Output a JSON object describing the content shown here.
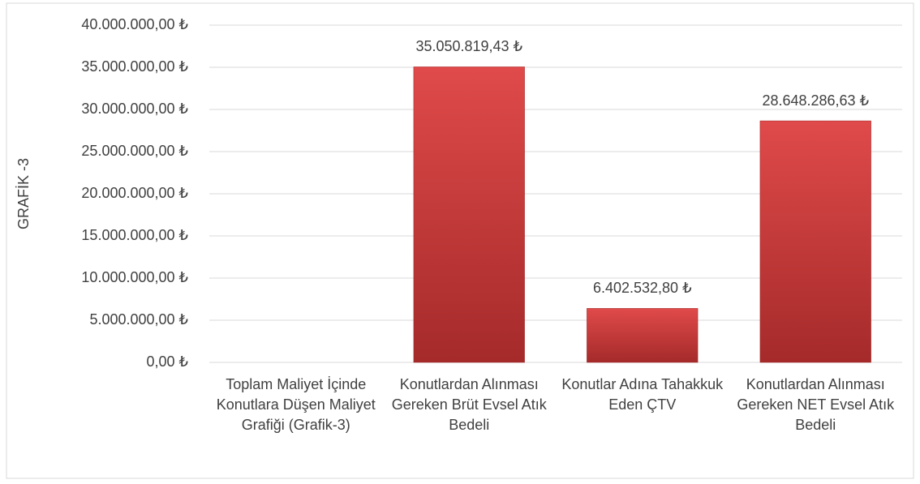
{
  "chart_data": {
    "type": "bar",
    "y_label": "GRAFİK -3",
    "categories": [
      "Toplam Maliyet İçinde Konutlara Düşen Maliyet Grafiği (Grafik-3)",
      "Konutlardan Alınması Gereken Brüt Evsel Atık Bedeli",
      "Konutlar Adına Tahakkuk Eden ÇTV",
      "Konutlardan Alınması Gereken NET Evsel Atık Bedeli"
    ],
    "values": [
      null,
      35050819.43,
      6402532.8,
      28648286.63
    ],
    "value_labels": [
      null,
      "35.050.819,43 ₺",
      "6.402.532,80 ₺",
      "28.648.286,63 ₺"
    ],
    "color": "#c83232",
    "ylim": [
      0,
      40000000
    ],
    "yticks": [
      {
        "value": 0,
        "label": "0,00 ₺"
      },
      {
        "value": 5000000,
        "label": "5.000.000,00 ₺"
      },
      {
        "value": 10000000,
        "label": "10.000.000,00 ₺"
      },
      {
        "value": 15000000,
        "label": "15.000.000,00 ₺"
      },
      {
        "value": 20000000,
        "label": "20.000.000,00 ₺"
      },
      {
        "value": 25000000,
        "label": "25.000.000,00 ₺"
      },
      {
        "value": 30000000,
        "label": "30.000.000,00 ₺"
      },
      {
        "value": 35000000,
        "label": "35.000.000,00 ₺"
      },
      {
        "value": 40000000,
        "label": "40.000.000,00 ₺"
      }
    ],
    "grid": true
  }
}
